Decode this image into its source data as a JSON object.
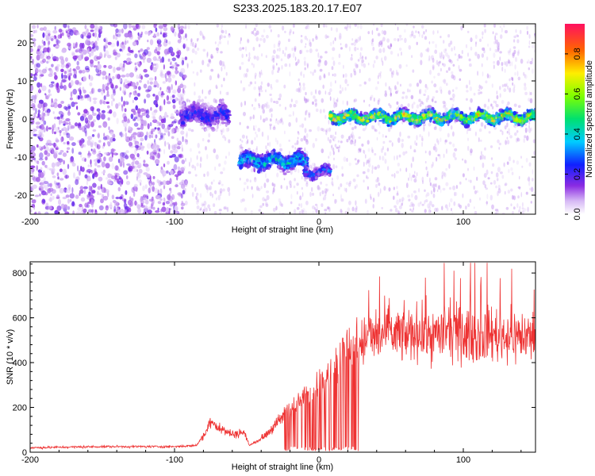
{
  "title": "S233.2025.183.20.17.E07",
  "chart_data": [
    {
      "type": "heatmap",
      "xlabel": "Height of straight line (km)",
      "ylabel": "Frequency (Hz)",
      "xlim": [
        -200,
        150
      ],
      "ylim": [
        -25,
        25
      ],
      "x_ticks": [
        -200,
        -100,
        0,
        100
      ],
      "y_ticks": [
        -20,
        -10,
        0,
        10,
        20
      ],
      "colorbar": {
        "label": "Normalized spectral amplitude",
        "range": [
          0,
          0.95
        ],
        "ticks": [
          "0.0",
          "0.2",
          "0.4",
          "0.6",
          "0.8"
        ]
      },
      "features": [
        {
          "x_range": [
            -200,
            -92
          ],
          "f_range": [
            -25,
            25
          ],
          "amplitude": 0.05
        },
        {
          "x_range": [
            -95,
            -62
          ],
          "f_center": 1,
          "f_width": 4,
          "amplitude": 0.3
        },
        {
          "x_range": [
            -55,
            -8
          ],
          "f_center": -11,
          "f_width": 3,
          "amplitude": 0.5
        },
        {
          "x_range": [
            -10,
            8
          ],
          "f_center": -14,
          "f_width": 2,
          "amplitude": 0.35
        },
        {
          "x_range": [
            8,
            150
          ],
          "f_center": 0.5,
          "f_width": 2,
          "amplitude": 0.8
        }
      ],
      "grid": false,
      "legend": "colorbar-right"
    },
    {
      "type": "line",
      "xlabel": "Height of straight line (km)",
      "ylabel": "SNR (10 * v/v)",
      "xlim": [
        -200,
        150
      ],
      "ylim": [
        0,
        850
      ],
      "x_ticks": [
        -200,
        -100,
        0,
        100
      ],
      "y_ticks": [
        0,
        200,
        400,
        600,
        800
      ],
      "series": [
        {
          "color": "#ee3333",
          "envelope_x": [
            -200,
            -150,
            -100,
            -85,
            -78,
            -75,
            -70,
            -60,
            -52,
            -48,
            -40,
            -30,
            -20,
            -15,
            -10,
            -5,
            0,
            5,
            10,
            15,
            20,
            25,
            30,
            40,
            50,
            60,
            70,
            80,
            90,
            100,
            110,
            120,
            130,
            140,
            150
          ],
          "envelope_y": [
            20,
            25,
            25,
            30,
            90,
            150,
            110,
            80,
            90,
            30,
            60,
            120,
            200,
            220,
            250,
            280,
            300,
            330,
            380,
            420,
            480,
            470,
            500,
            520,
            530,
            520,
            540,
            520,
            540,
            520,
            520,
            530,
            520,
            520,
            510
          ]
        }
      ],
      "grid": false
    }
  ]
}
